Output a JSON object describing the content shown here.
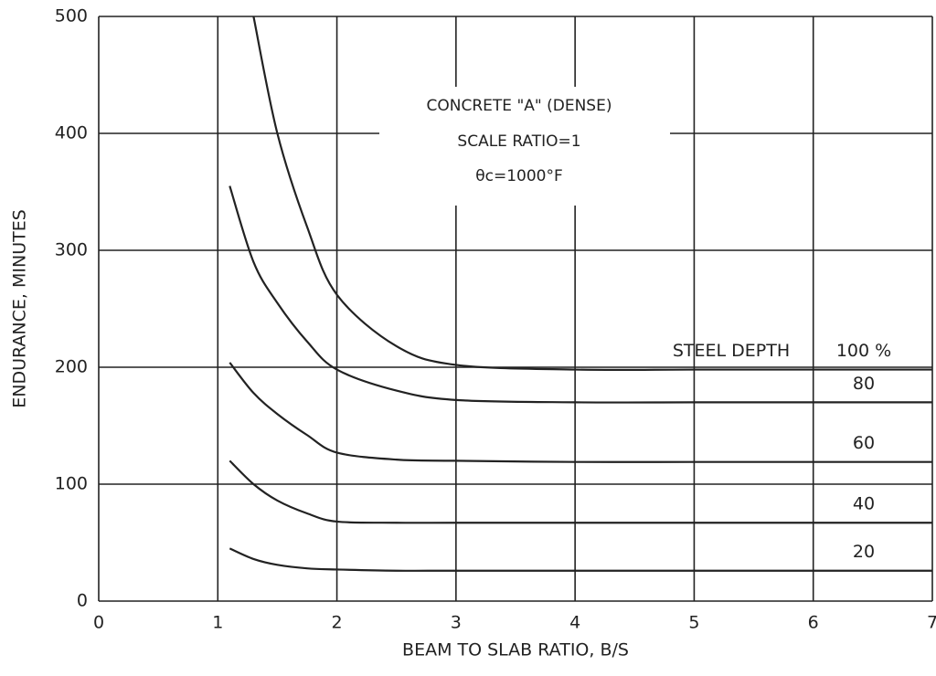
{
  "chart_data": {
    "type": "line",
    "xlabel": "BEAM TO SLAB RATIO, B/S",
    "ylabel": "ENDURANCE, MINUTES",
    "annotations": [
      "CONCRETE \"A\" (DENSE)",
      "SCALE RATIO=1",
      "θc=1000°F",
      "STEEL DEPTH"
    ],
    "x": [
      1.1,
      1.3,
      1.5,
      1.75,
      2,
      2.5,
      3,
      4,
      5,
      6,
      7
    ],
    "series": [
      {
        "name": "100 %",
        "color": "#222222",
        "values": [
          null,
          500,
          400,
          320,
          262,
          218,
          202,
          198,
          198,
          198,
          198
        ]
      },
      {
        "name": "80",
        "color": "#222222",
        "values": [
          355,
          290,
          255,
          222,
          198,
          180,
          172,
          170,
          170,
          170,
          170
        ]
      },
      {
        "name": "60",
        "color": "#222222",
        "values": [
          204,
          178,
          160,
          142,
          127,
          121,
          120,
          119,
          119,
          119,
          119
        ]
      },
      {
        "name": "40",
        "color": "#222222",
        "values": [
          120,
          100,
          86,
          75,
          68,
          67,
          67,
          67,
          67,
          67,
          67
        ]
      },
      {
        "name": "20",
        "color": "#222222",
        "values": [
          45,
          36,
          31,
          28,
          27,
          26,
          26,
          26,
          26,
          26,
          26
        ]
      }
    ],
    "xlim": [
      0,
      7
    ],
    "xticks": [
      0,
      1,
      2,
      3,
      4,
      5,
      6,
      7
    ],
    "ylim": [
      0,
      500
    ],
    "yticks": [
      0,
      100,
      200,
      300,
      400,
      500
    ],
    "grid": true
  }
}
